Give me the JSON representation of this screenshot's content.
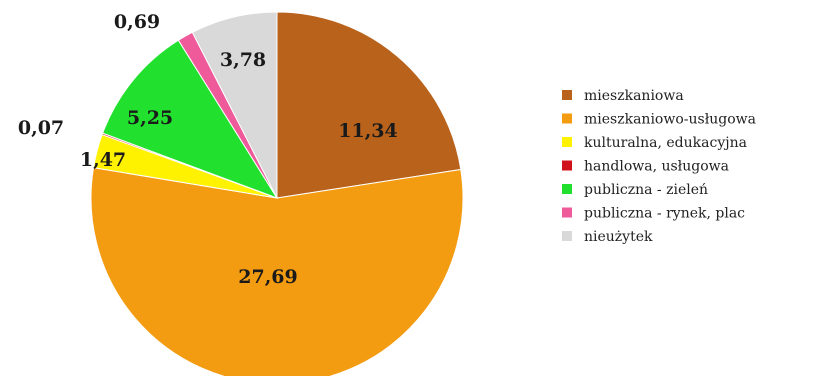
{
  "chart_data": {
    "type": "pie",
    "title": "",
    "legend_position": "right",
    "slices": [
      {
        "label": "mieszkaniowa",
        "value": 11.34,
        "display": "11,34",
        "color": "#B8621B"
      },
      {
        "label": "mieszkaniowo-usługowa",
        "value": 27.69,
        "display": "27,69",
        "color": "#F39C12"
      },
      {
        "label": "kulturalna, edukacyjna",
        "value": 1.47,
        "display": "1,47",
        "color": "#FFF200"
      },
      {
        "label": "handlowa, usługowa",
        "value": 0.07,
        "display": "0,07",
        "color": "#D0101B"
      },
      {
        "label": "publiczna - zieleń",
        "value": 5.25,
        "display": "5,25",
        "color": "#22E02E"
      },
      {
        "label": "publiczna - rynek, plac",
        "value": 0.69,
        "display": "0,69",
        "color": "#EE5A9A"
      },
      {
        "label": "nieużytek",
        "value": 3.78,
        "display": "3,78",
        "color": "#D9D9D9"
      }
    ]
  }
}
